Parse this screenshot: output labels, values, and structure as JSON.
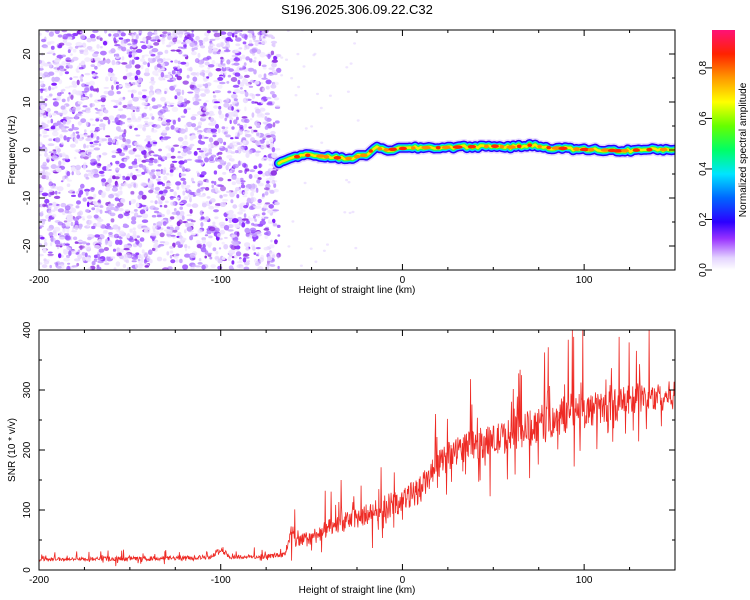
{
  "figure": {
    "title": "S196.2025.306.09.22.C32"
  },
  "chart_data": [
    {
      "type": "heatmap",
      "title": "S196.2025.306.09.22.C32",
      "xlabel": "Height of straight line (km)",
      "ylabel": "Frequency (Hz)",
      "xlim": [
        -200,
        150
      ],
      "ylim": [
        -25,
        25
      ],
      "x_ticks": [
        -200,
        -100,
        0,
        100
      ],
      "y_ticks": [
        -20,
        -10,
        0,
        10,
        20
      ],
      "signal_start_km": -68,
      "signal_ridge": {
        "x": [
          -68,
          -60,
          -50,
          -40,
          -30,
          -20,
          -15,
          -10,
          0,
          10,
          20,
          30,
          40,
          50,
          60,
          70,
          80,
          90,
          100,
          110,
          120,
          130,
          140,
          150
        ],
        "y": [
          -2.5,
          -1.5,
          -1.0,
          -1.5,
          -1.8,
          -1.0,
          0.5,
          0.0,
          0.3,
          0.5,
          0.5,
          0.6,
          0.7,
          0.8,
          0.6,
          1.0,
          0.5,
          0.3,
          0.1,
          0.0,
          -0.2,
          0.0,
          0.1,
          0.1
        ]
      },
      "noise_region_km": [
        -200,
        -68
      ],
      "colorbar": {
        "label": "Normalized spectral amplitude",
        "range": [
          0,
          0.95
        ],
        "ticks": [
          0.0,
          0.2,
          0.4,
          0.6,
          0.8
        ],
        "tick_labels": [
          "0.0",
          "0.2",
          "0.4",
          "0.6",
          "0.8"
        ],
        "colormap": [
          "#ffffff",
          "#d9c2ff",
          "#8a2be2",
          "#0000ff",
          "#00e5ff",
          "#00ff00",
          "#ffff00",
          "#ff8000",
          "#ff0000",
          "#ff1493"
        ]
      }
    },
    {
      "type": "line",
      "xlabel": "Height of straight line (km)",
      "ylabel": "SNR (10 * v/v)",
      "xlim": [
        -200,
        150
      ],
      "ylim": [
        0,
        400
      ],
      "x_ticks": [
        -200,
        -100,
        0,
        100
      ],
      "y_ticks": [
        0,
        100,
        200,
        300,
        400
      ],
      "color": "#ee2a24",
      "series": [
        {
          "name": "SNR",
          "x": [
            -200,
            -180,
            -160,
            -140,
            -120,
            -105,
            -100,
            -95,
            -80,
            -65,
            -61,
            -58,
            -50,
            -40,
            -30,
            -20,
            -10,
            0,
            10,
            20,
            30,
            40,
            50,
            60,
            70,
            80,
            90,
            100,
            110,
            120,
            130,
            140,
            150
          ],
          "y": [
            18,
            18,
            19,
            19,
            20,
            22,
            35,
            22,
            22,
            25,
            65,
            45,
            55,
            70,
            82,
            92,
            105,
            115,
            135,
            175,
            200,
            210,
            215,
            225,
            238,
            248,
            260,
            265,
            270,
            278,
            285,
            288,
            292
          ],
          "spike_amplitude": [
            10,
            10,
            12,
            12,
            12,
            12,
            15,
            12,
            12,
            15,
            50,
            40,
            45,
            50,
            55,
            60,
            70,
            70,
            75,
            80,
            80,
            85,
            90,
            95,
            100,
            105,
            110,
            100,
            95,
            90,
            85,
            80,
            80
          ]
        }
      ]
    }
  ]
}
